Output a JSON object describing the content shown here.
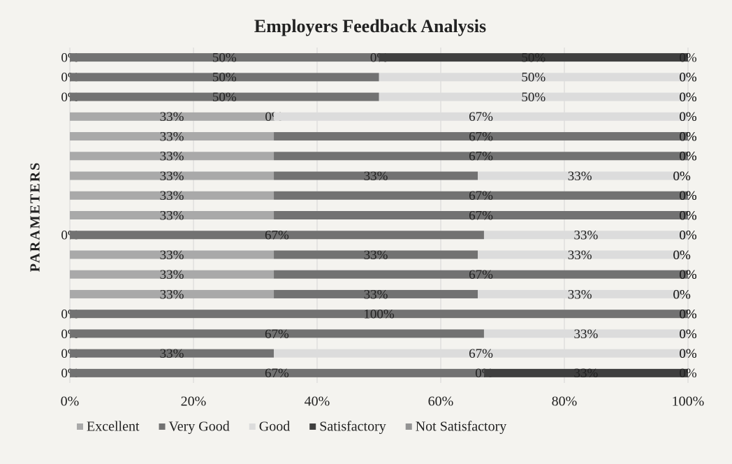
{
  "chart_data": {
    "type": "stacked_bar_horizontal",
    "title": "Employers Feedback Analysis",
    "y_label": "PARAMETERS",
    "categories": [
      null,
      null,
      null,
      null,
      null,
      null,
      null,
      null,
      null,
      null,
      null,
      null,
      null,
      null,
      null,
      null,
      null
    ],
    "series": [
      {
        "name": "Excellent",
        "color": "#a9a9a9",
        "values": [
          0,
          0,
          0,
          33,
          33,
          33,
          33,
          33,
          33,
          0,
          33,
          33,
          33,
          0,
          0,
          0,
          0
        ]
      },
      {
        "name": "Very Good",
        "color": "#727272",
        "values": [
          50,
          50,
          50,
          0,
          67,
          67,
          33,
          67,
          67,
          67,
          33,
          67,
          33,
          100,
          67,
          33,
          67
        ]
      },
      {
        "name": "Good",
        "color": "#dcdcdc",
        "values": [
          0,
          50,
          50,
          67,
          0,
          0,
          33,
          0,
          0,
          33,
          33,
          0,
          33,
          0,
          33,
          67,
          0
        ]
      },
      {
        "name": "Satisfactory",
        "color": "#3f3f3f",
        "values": [
          50,
          0,
          0,
          0,
          0,
          0,
          0,
          0,
          0,
          0,
          0,
          0,
          0,
          0,
          0,
          0,
          33
        ]
      },
      {
        "name": "Not Satisfactory",
        "color": "#939393",
        "values": [
          0,
          0,
          0,
          0,
          0,
          0,
          0,
          0,
          0,
          0,
          0,
          0,
          0,
          0,
          0,
          0,
          0
        ]
      }
    ],
    "xlim": [
      0,
      100
    ],
    "xticks": [
      {
        "value": 0,
        "label": "0%"
      },
      {
        "value": 20,
        "label": "20%"
      },
      {
        "value": 40,
        "label": "40%"
      },
      {
        "value": 60,
        "label": "60%"
      },
      {
        "value": 80,
        "label": "80%"
      },
      {
        "value": 100,
        "label": "100%"
      }
    ],
    "grid": true,
    "legend": "bottom"
  }
}
